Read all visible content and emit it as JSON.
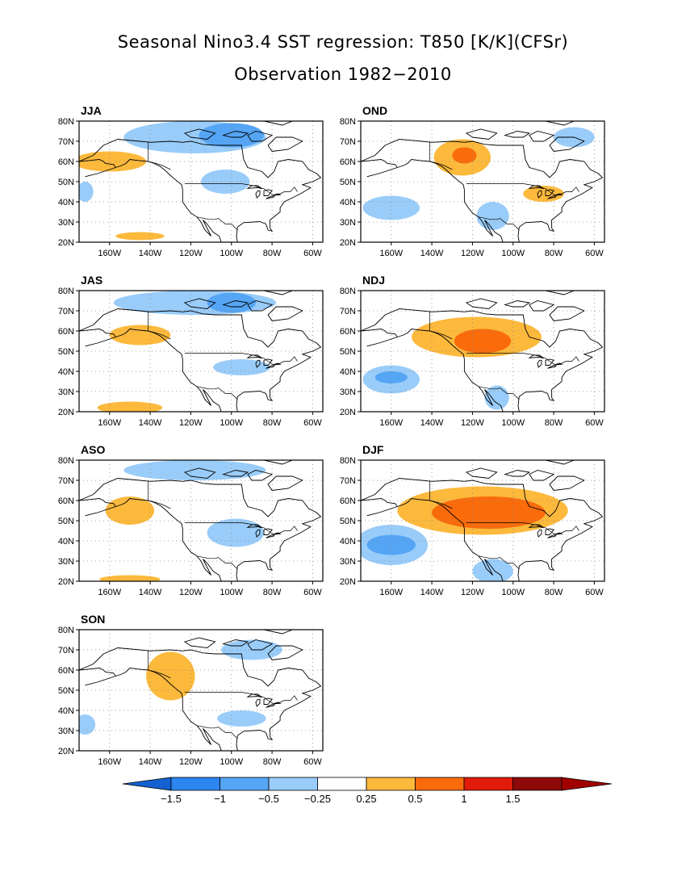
{
  "title": "Seasonal Nino3.4 SST regression: T850 [K/K](CFSr)",
  "subtitle": "Observation 1982−2010",
  "lat_labels": [
    "80N",
    "70N",
    "60N",
    "50N",
    "40N",
    "30N",
    "20N"
  ],
  "lon_labels": [
    "160W",
    "140W",
    "120W",
    "100W",
    "80W",
    "60W"
  ],
  "panels": [
    {
      "season": "JJA",
      "blobs": [
        {
          "lon": -118,
          "lat": 72,
          "w": 35,
          "h": 8,
          "level": "neg1",
          "strength": "weak"
        },
        {
          "lon": -100,
          "lat": 73,
          "w": 16,
          "h": 6,
          "level": "neg2",
          "strength": "moderate"
        },
        {
          "lon": -103,
          "lat": 50,
          "w": 12,
          "h": 6,
          "level": "neg1",
          "strength": "weak"
        },
        {
          "lon": -160,
          "lat": 60,
          "w": 18,
          "h": 5,
          "level": "pos1",
          "strength": "weak"
        },
        {
          "lon": -145,
          "lat": 23,
          "w": 12,
          "h": 2,
          "level": "pos1",
          "strength": "weak"
        },
        {
          "lon": -172,
          "lat": 45,
          "w": 4,
          "h": 5,
          "level": "neg1",
          "strength": "weak"
        }
      ]
    },
    {
      "season": "OND",
      "blobs": [
        {
          "lon": -125,
          "lat": 62,
          "w": 14,
          "h": 9,
          "level": "pos1",
          "strength": "weak"
        },
        {
          "lon": -124,
          "lat": 63,
          "w": 6,
          "h": 4,
          "level": "pos2",
          "strength": "moderate"
        },
        {
          "lon": -85,
          "lat": 44,
          "w": 10,
          "h": 4,
          "level": "pos1",
          "strength": "weak"
        },
        {
          "lon": -160,
          "lat": 37,
          "w": 14,
          "h": 6,
          "level": "neg1",
          "strength": "weak"
        },
        {
          "lon": -110,
          "lat": 33,
          "w": 8,
          "h": 7,
          "level": "neg1",
          "strength": "weak"
        },
        {
          "lon": -70,
          "lat": 72,
          "w": 10,
          "h": 5,
          "level": "neg1",
          "strength": "weak"
        }
      ]
    },
    {
      "season": "JAS",
      "blobs": [
        {
          "lon": -118,
          "lat": 74,
          "w": 40,
          "h": 6,
          "level": "neg1",
          "strength": "weak"
        },
        {
          "lon": -100,
          "lat": 74,
          "w": 12,
          "h": 5,
          "level": "neg2",
          "strength": "moderate"
        },
        {
          "lon": -95,
          "lat": 42,
          "w": 14,
          "h": 4,
          "level": "neg1",
          "strength": "weak"
        },
        {
          "lon": -145,
          "lat": 58,
          "w": 15,
          "h": 5,
          "level": "pos1",
          "strength": "weak"
        },
        {
          "lon": -150,
          "lat": 22,
          "w": 16,
          "h": 3,
          "level": "pos1",
          "strength": "weak"
        }
      ]
    },
    {
      "season": "NDJ",
      "blobs": [
        {
          "lon": -118,
          "lat": 57,
          "w": 32,
          "h": 10,
          "level": "pos1",
          "strength": "weak"
        },
        {
          "lon": -115,
          "lat": 55,
          "w": 14,
          "h": 6,
          "level": "pos2",
          "strength": "moderate"
        },
        {
          "lon": -160,
          "lat": 36,
          "w": 14,
          "h": 7,
          "level": "neg1",
          "strength": "weak"
        },
        {
          "lon": -160,
          "lat": 37,
          "w": 8,
          "h": 3,
          "level": "neg2",
          "strength": "moderate"
        },
        {
          "lon": -108,
          "lat": 27,
          "w": 6,
          "h": 6,
          "level": "neg1",
          "strength": "weak"
        }
      ]
    },
    {
      "season": "ASO",
      "blobs": [
        {
          "lon": -118,
          "lat": 75,
          "w": 35,
          "h": 5,
          "level": "neg1",
          "strength": "weak"
        },
        {
          "lon": -98,
          "lat": 44,
          "w": 14,
          "h": 7,
          "level": "neg1",
          "strength": "weak"
        },
        {
          "lon": -150,
          "lat": 55,
          "w": 12,
          "h": 7,
          "level": "pos1",
          "strength": "weak"
        },
        {
          "lon": -150,
          "lat": 21,
          "w": 15,
          "h": 2,
          "level": "pos1",
          "strength": "weak"
        }
      ]
    },
    {
      "season": "DJF",
      "blobs": [
        {
          "lon": -115,
          "lat": 55,
          "w": 42,
          "h": 12,
          "level": "pos1",
          "strength": "weak"
        },
        {
          "lon": -112,
          "lat": 54,
          "w": 28,
          "h": 8,
          "level": "pos2",
          "strength": "moderate"
        },
        {
          "lon": -160,
          "lat": 38,
          "w": 18,
          "h": 10,
          "level": "neg1",
          "strength": "weak"
        },
        {
          "lon": -160,
          "lat": 38,
          "w": 12,
          "h": 5,
          "level": "neg2",
          "strength": "moderate"
        },
        {
          "lon": -110,
          "lat": 25,
          "w": 10,
          "h": 6,
          "level": "neg1",
          "strength": "weak"
        }
      ]
    },
    {
      "season": "SON",
      "blobs": [
        {
          "lon": -130,
          "lat": 57,
          "w": 12,
          "h": 12,
          "level": "pos1",
          "strength": "weak"
        },
        {
          "lon": -95,
          "lat": 36,
          "w": 12,
          "h": 4,
          "level": "neg1",
          "strength": "weak"
        },
        {
          "lon": -90,
          "lat": 70,
          "w": 15,
          "h": 5,
          "level": "neg1",
          "strength": "weak"
        },
        {
          "lon": -172,
          "lat": 33,
          "w": 5,
          "h": 5,
          "level": "neg1",
          "strength": "weak"
        }
      ]
    }
  ],
  "colorbar": {
    "labels": [
      "−1.5",
      "−1",
      "−0.5",
      "−0.25",
      "0.25",
      "0.5",
      "1",
      "1.5"
    ],
    "colors": [
      "#1e6ee8",
      "#2d86f0",
      "#55a5f5",
      "#99ccf9",
      "#ffffff",
      "#fcb93c",
      "#f96b0b",
      "#e01b0b",
      "#8e0a0a",
      "#1462d2",
      "#a00000"
    ]
  },
  "colors": {
    "neg1": "#99ccf9",
    "neg2": "#55a5f5",
    "neg3": "#2d86f0",
    "pos1": "#fcb93c",
    "pos2": "#f96b0b",
    "pos3": "#e01b0b"
  }
}
